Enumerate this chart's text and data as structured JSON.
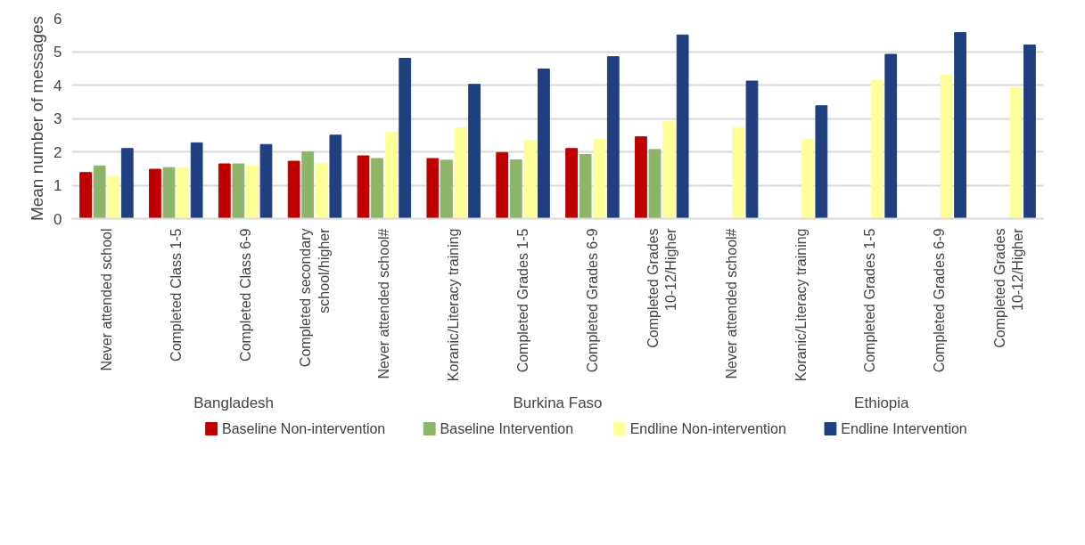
{
  "chart_data": {
    "type": "bar",
    "ylabel": "Mean number of messages",
    "categories": [
      "Never attended school",
      "Completed Class 1-5",
      "Completed Class 6-9",
      "Completed secondary school/higher",
      "Never attended school#",
      "Koranic/Literacy training",
      "Completed Grades 1-5",
      "Completed Grades 6-9",
      "Completed Grades 10-12/Higher",
      "Never attended school#",
      "Koranic/Literacy training",
      "Completed Grades 1-5",
      "Completed Grades 6-9",
      "Completed Grades 10-12/Higher"
    ],
    "series": [
      {
        "name": "Baseline Non-intervention",
        "color": "#c00000",
        "values": [
          1.38,
          1.48,
          1.64,
          1.72,
          1.88,
          1.8,
          1.98,
          2.1,
          2.45,
          null,
          null,
          null,
          null,
          null
        ]
      },
      {
        "name": "Baseline Intervention",
        "color": "#8db56a",
        "values": [
          1.58,
          1.53,
          1.64,
          2.0,
          1.8,
          1.75,
          1.76,
          1.92,
          2.07,
          null,
          null,
          null,
          null,
          null
        ]
      },
      {
        "name": "Endline Non-intervention",
        "color": "#ffff99",
        "values": [
          1.27,
          1.53,
          1.57,
          1.65,
          2.58,
          2.72,
          2.35,
          2.37,
          2.9,
          2.73,
          2.38,
          4.15,
          4.3,
          3.92
        ]
      },
      {
        "name": "Endline Intervention",
        "color": "#1f3f80",
        "values": [
          2.1,
          2.27,
          2.22,
          2.5,
          4.8,
          4.02,
          4.48,
          4.85,
          5.5,
          4.12,
          3.38,
          4.92,
          5.57,
          5.2
        ]
      }
    ],
    "annotations": [
      "Bangladesh",
      "Burkina Faso",
      "Ethiopia"
    ],
    "ylim": [
      0,
      6
    ],
    "yticks": [
      0,
      1,
      2,
      3,
      4,
      5,
      6
    ],
    "grid": "y",
    "legend": "bottom"
  }
}
